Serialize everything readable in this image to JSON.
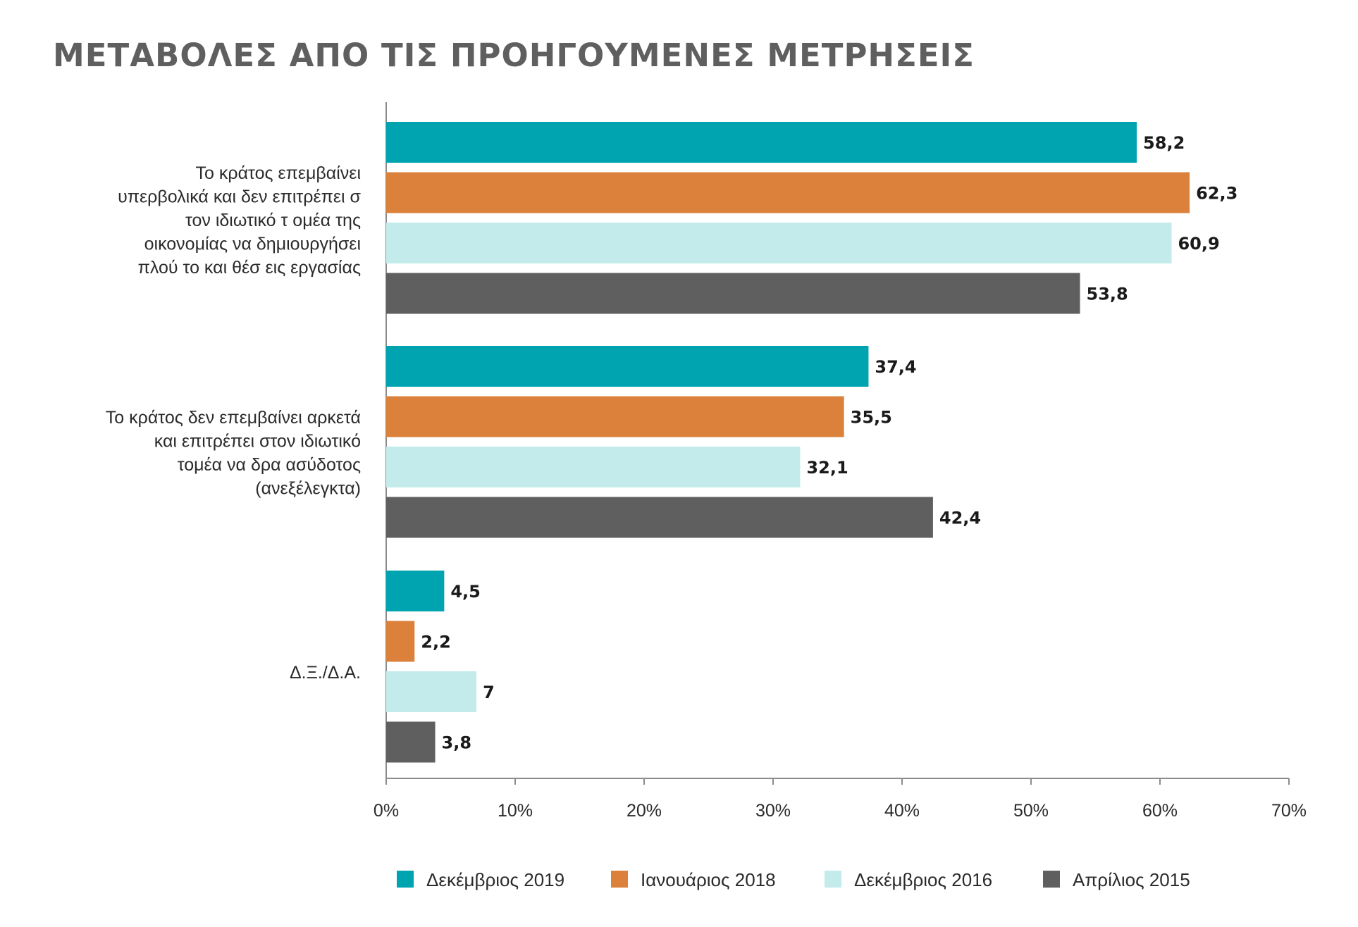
{
  "chart_data": {
    "type": "bar",
    "orientation": "horizontal",
    "title": "ΜΕΤΑΒΟΛΕΣ ΑΠΟ ΤΙΣ ΠΡΟΗΓΟΥΜΕΝΕΣ ΜΕΤΡΗΣΕΙΣ",
    "categories": [
      [
        "Το κράτος επεμβαίνει",
        "υπερβολικά και δεν επιτρέπει σ",
        "τον ιδιωτικό τ ομέα της",
        "οικονομίας να δημιουργήσει",
        "πλού το και θέσ εις εργασίας"
      ],
      [
        "Το κράτος δεν επεμβαίνει αρκετά",
        "και επιτρέπει στον ιδιωτικό",
        "τομέα να δρα ασύδοτος",
        "(ανεξέλεγκτα)"
      ],
      [
        "Δ.Ξ./Δ.Α."
      ]
    ],
    "series": [
      {
        "name": "Δεκέμβριος 2019",
        "color": "#00a3b0",
        "values": [
          58.2,
          37.4,
          4.5
        ],
        "labels": [
          "58,2",
          "37,4",
          "4,5"
        ]
      },
      {
        "name": "Ιανουάριος 2018",
        "color": "#db813b",
        "values": [
          62.3,
          35.5,
          2.2
        ],
        "labels": [
          "62,3",
          "35,5",
          "2,2"
        ]
      },
      {
        "name": "Δεκέμβριος 2016",
        "color": "#c3ebeb",
        "values": [
          60.9,
          32.1,
          7
        ],
        "labels": [
          "60,9",
          "32,1",
          "7"
        ]
      },
      {
        "name": "Απρίλιος 2015",
        "color": "#5f5f5f",
        "values": [
          53.8,
          42.4,
          3.8
        ],
        "labels": [
          "53,8",
          "42,4",
          "3,8"
        ]
      }
    ],
    "xlim": [
      0,
      70
    ],
    "xticks": [
      "0%",
      "10%",
      "20%",
      "30%",
      "40%",
      "50%",
      "60%",
      "70%"
    ],
    "legend_position": "bottom",
    "grid": false
  }
}
